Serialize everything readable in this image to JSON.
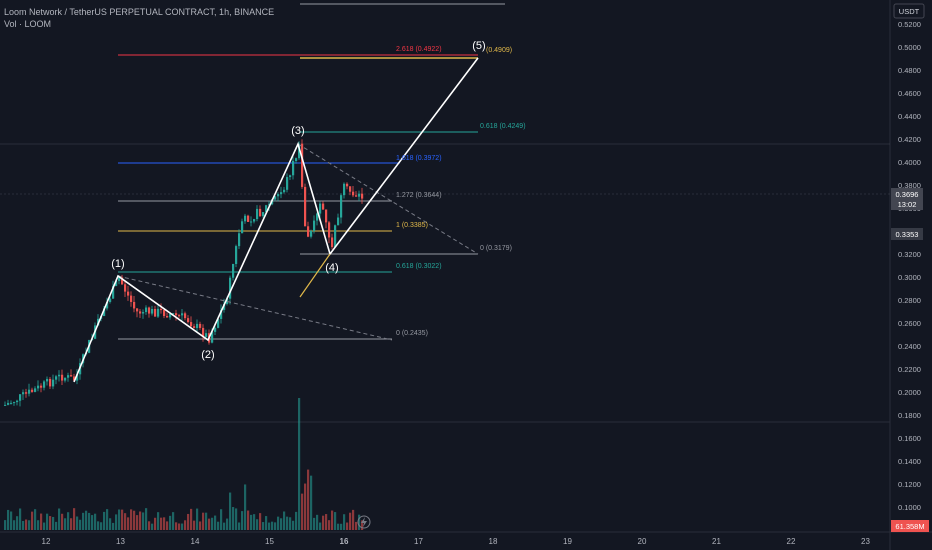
{
  "header": {
    "symbol_line": "Loom Network / TetherUS PERPETUAL CONTRACT, 1h, BINANCE",
    "indicator": "Vol · LOOM"
  },
  "price_axis": {
    "currency": "USDT",
    "ticks": [
      "0.5200",
      "0.5000",
      "0.4800",
      "0.4600",
      "0.4400",
      "0.4200",
      "0.4000",
      "0.3800",
      "0.3600",
      "0.3400",
      "0.3200",
      "0.3000",
      "0.2800",
      "0.2600",
      "0.2400",
      "0.2200",
      "0.2000",
      "0.1800",
      "0.1600",
      "0.1400",
      "0.1200",
      "0.1000"
    ],
    "current_price": "0.3696",
    "countdown": "13:02",
    "marked_price": "0.3353",
    "volume_value": "61.358M"
  },
  "time_axis": {
    "ticks": [
      "12",
      "13",
      "14",
      "15",
      "16",
      "17",
      "18",
      "19",
      "20",
      "21",
      "22",
      "23"
    ]
  },
  "waves": [
    "(1)",
    "(2)",
    "(3)",
    "(4)",
    "(5)"
  ],
  "fib_levels": [
    {
      "label": "2.618 (0.4922)",
      "price": 0.4922,
      "color": "#f23645"
    },
    {
      "label": "(0.4909)",
      "price": 0.4909,
      "color": "#e0b84a"
    },
    {
      "label": "0.618 (0.4249)",
      "price": 0.4249,
      "color": "#26a69a"
    },
    {
      "label": "1.618 (0.3972)",
      "price": 0.3972,
      "color": "#2962ff"
    },
    {
      "label": "1.272 (0.3644)",
      "price": 0.3644,
      "color": "#9598a1"
    },
    {
      "label": "1 (0.3385)",
      "price": 0.3385,
      "color": "#e0b84a"
    },
    {
      "label": "0 (0.3179)",
      "price": 0.3179,
      "color": "#9598a1"
    },
    {
      "label": "0.618 (0.3022)",
      "price": 0.3022,
      "color": "#26a69a"
    },
    {
      "label": "0 (0.2435)",
      "price": 0.2435,
      "color": "#9598a1"
    }
  ],
  "colors": {
    "up": "#26a69a",
    "down": "#ef5350",
    "bg": "#131722"
  }
}
